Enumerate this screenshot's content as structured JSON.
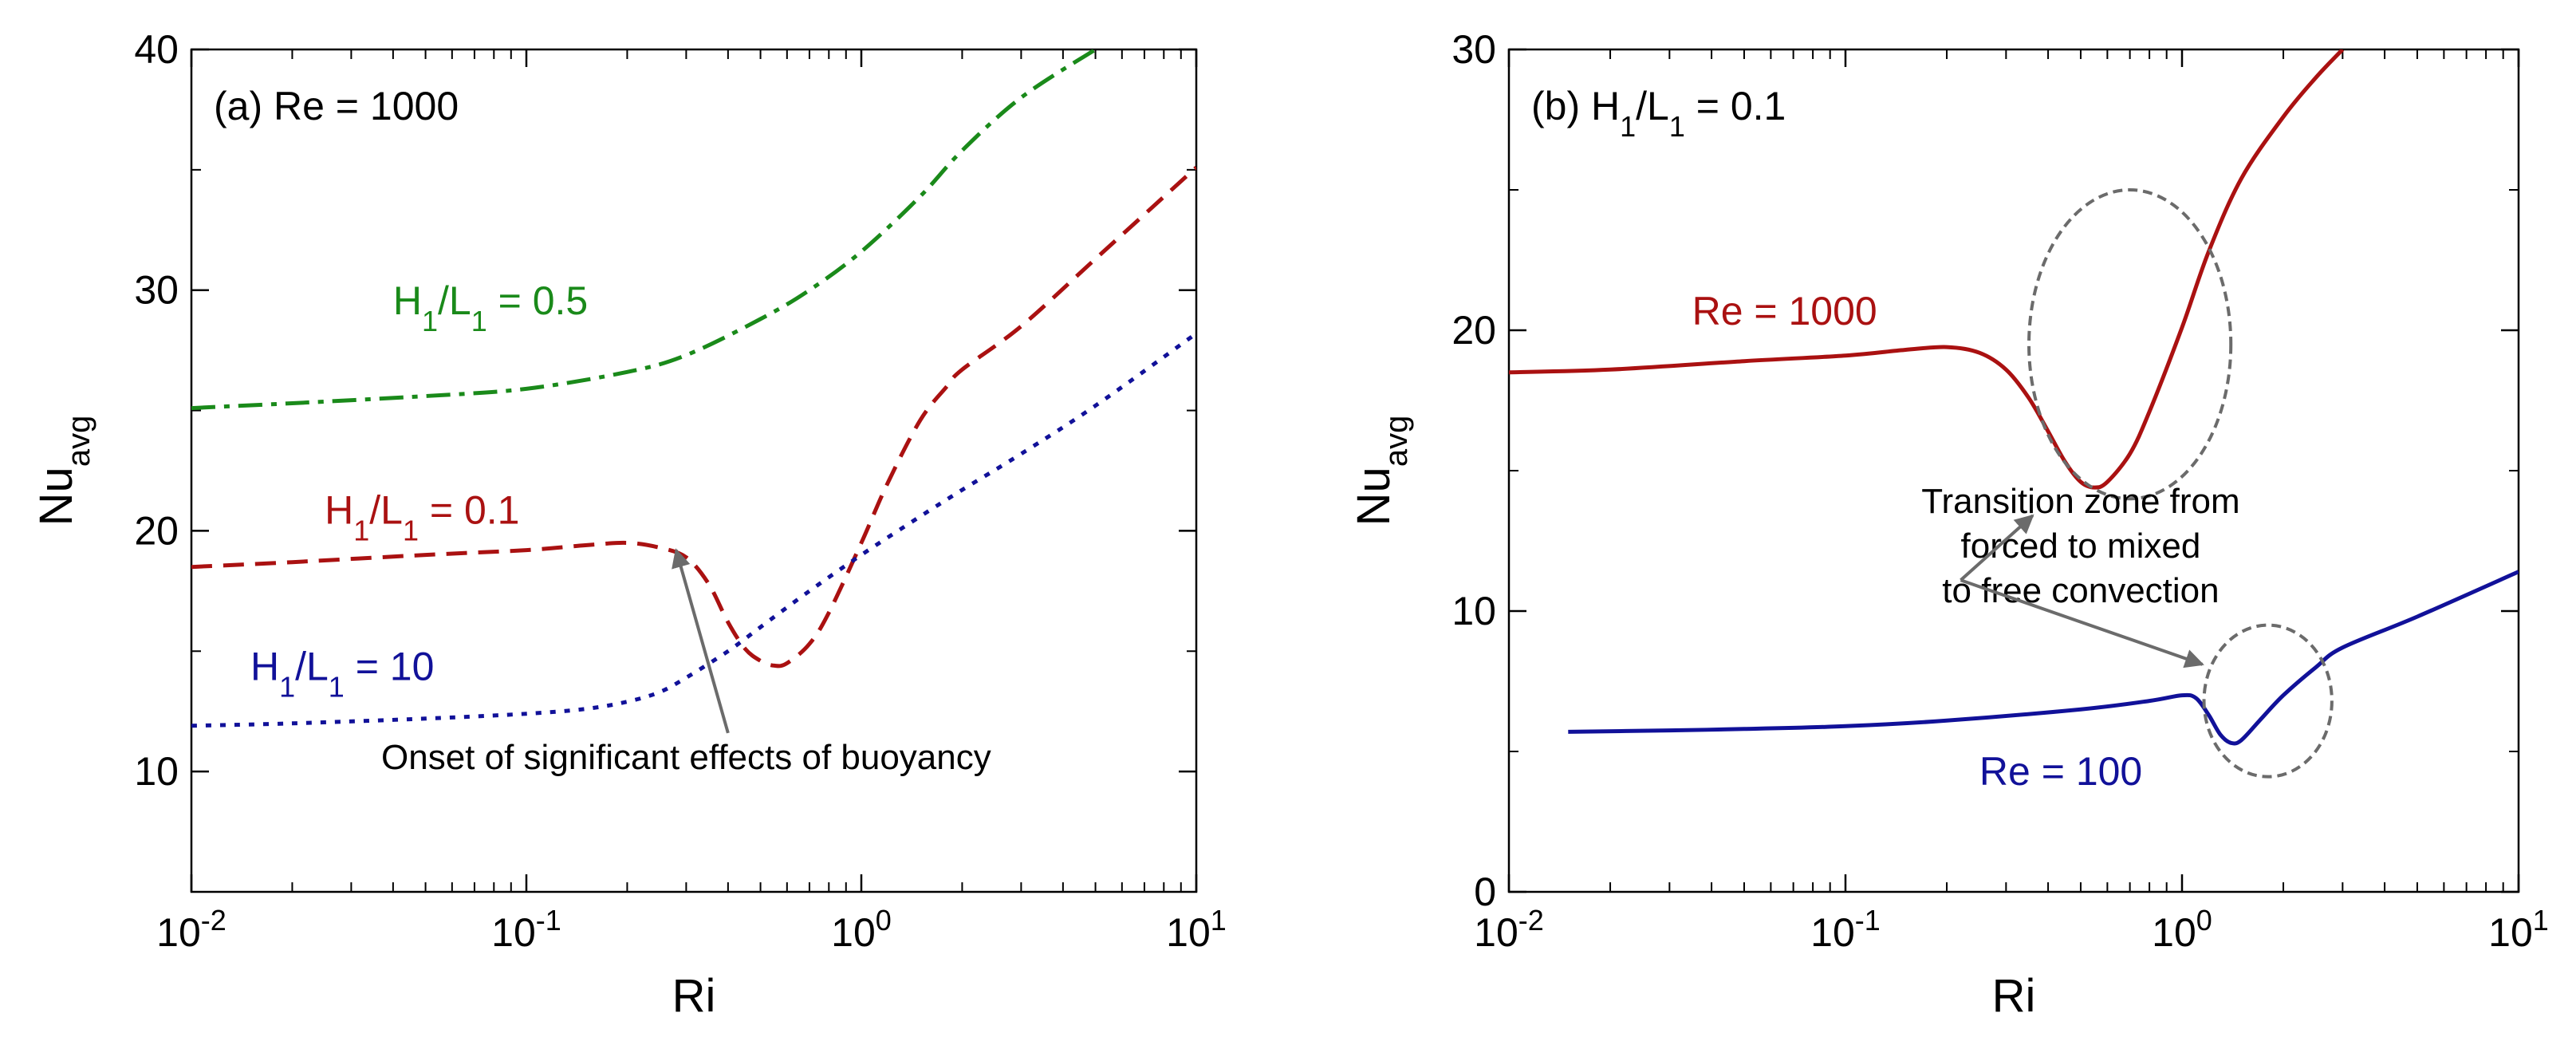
{
  "chart_data": [
    {
      "type": "line",
      "panel_label": "(a)",
      "title": "Re = 1000",
      "xlabel": "Ri",
      "ylabel": "Nu",
      "ylabel_sub": "avg",
      "xscale": "log",
      "xlim": [
        0.01,
        10
      ],
      "ylim": [
        5,
        40
      ],
      "xticks": [
        {
          "value": 0.01,
          "base": "10",
          "exp": "-2"
        },
        {
          "value": 0.1,
          "base": "10",
          "exp": "-1"
        },
        {
          "value": 1,
          "base": "10",
          "exp": "0"
        },
        {
          "value": 10,
          "base": "10",
          "exp": "1"
        }
      ],
      "yticks": [
        {
          "value": 10,
          "label": "10"
        },
        {
          "value": 20,
          "label": "20"
        },
        {
          "value": 30,
          "label": "30"
        },
        {
          "value": 40,
          "label": "40"
        }
      ],
      "series": [
        {
          "name": "H1/L1 = 0.5",
          "label_parts": [
            "H",
            "1",
            "/L",
            "1",
            " = 0.5"
          ],
          "color": "#1a8a1a",
          "style": "dashdot",
          "label_at": [
            0.04,
            29
          ],
          "x": [
            0.01,
            0.02,
            0.05,
            0.1,
            0.2,
            0.3,
            0.5,
            0.7,
            1.0,
            1.5,
            2.0,
            3.0,
            5.0
          ],
          "y": [
            25.1,
            25.3,
            25.6,
            25.9,
            26.6,
            27.3,
            28.8,
            30.0,
            31.6,
            33.9,
            35.8,
            38.0,
            40.0
          ]
        },
        {
          "name": "H1/L1 = 0.1",
          "label_parts": [
            "H",
            "1",
            "/L",
            "1",
            " = 0.1"
          ],
          "color": "#aa1111",
          "style": "dashed",
          "label_at": [
            0.025,
            20.3
          ],
          "x": [
            0.01,
            0.02,
            0.05,
            0.1,
            0.15,
            0.2,
            0.25,
            0.3,
            0.35,
            0.4,
            0.45,
            0.5,
            0.55,
            0.6,
            0.7,
            0.8,
            1.0,
            1.2,
            1.5,
            1.8,
            2.0,
            3.0,
            5.0,
            10.0
          ],
          "y": [
            18.5,
            18.7,
            19.0,
            19.2,
            19.4,
            19.5,
            19.3,
            18.9,
            17.8,
            16.2,
            15.1,
            14.6,
            14.4,
            14.5,
            15.3,
            16.6,
            19.5,
            22.0,
            24.6,
            26.0,
            26.7,
            28.5,
            31.3,
            35.1
          ]
        },
        {
          "name": "H1/L1 = 10",
          "label_parts": [
            "H",
            "1",
            "/L",
            "1",
            " = 10"
          ],
          "color": "#111199",
          "style": "dotted",
          "label_at": [
            0.015,
            13.8
          ],
          "x": [
            0.01,
            0.02,
            0.05,
            0.1,
            0.15,
            0.2,
            0.25,
            0.3,
            0.4,
            0.5,
            0.7,
            1.0,
            1.5,
            2.0,
            3.0,
            5.0,
            10.0
          ],
          "y": [
            11.9,
            12.0,
            12.2,
            12.4,
            12.6,
            12.9,
            13.3,
            13.9,
            15.0,
            16.0,
            17.5,
            19.0,
            20.6,
            21.7,
            23.2,
            25.2,
            28.2
          ]
        }
      ],
      "annotation": {
        "text": "Onset of significant effects of buoyancy",
        "text_at": [
          0.3,
          10.1
        ],
        "arrow_from": [
          0.4,
          11.6
        ],
        "arrow_to": [
          0.28,
          19.2
        ]
      }
    },
    {
      "type": "line",
      "panel_label": "(b)",
      "title": "H1/L1 = 0.1",
      "title_parts": [
        "H",
        "1",
        "/L",
        "1",
        " = 0.1"
      ],
      "xlabel": "Ri",
      "ylabel": "Nu",
      "ylabel_sub": "avg",
      "xscale": "log",
      "xlim": [
        0.01,
        10
      ],
      "ylim": [
        0,
        30
      ],
      "xticks": [
        {
          "value": 0.01,
          "base": "10",
          "exp": "-2"
        },
        {
          "value": 0.1,
          "base": "10",
          "exp": "-1"
        },
        {
          "value": 1,
          "base": "10",
          "exp": "0"
        },
        {
          "value": 10,
          "base": "10",
          "exp": "1"
        }
      ],
      "yticks": [
        {
          "value": 0,
          "label": "0"
        },
        {
          "value": 10,
          "label": "10"
        },
        {
          "value": 20,
          "label": "20"
        },
        {
          "value": 30,
          "label": "30"
        }
      ],
      "series": [
        {
          "name": "Re = 1000",
          "color": "#aa1111",
          "style": "solid",
          "label_at": [
            0.035,
            20.2
          ],
          "x": [
            0.01,
            0.02,
            0.05,
            0.1,
            0.15,
            0.2,
            0.25,
            0.3,
            0.35,
            0.4,
            0.45,
            0.5,
            0.55,
            0.6,
            0.7,
            0.8,
            1.0,
            1.2,
            1.5,
            2.0,
            2.5,
            3.0
          ],
          "y": [
            18.5,
            18.6,
            18.9,
            19.1,
            19.3,
            19.4,
            19.2,
            18.6,
            17.6,
            16.4,
            15.3,
            14.6,
            14.4,
            14.6,
            15.6,
            17.1,
            20.1,
            22.8,
            25.4,
            27.6,
            29.0,
            30.0
          ]
        },
        {
          "name": "Re = 100",
          "color": "#111199",
          "style": "solid",
          "label_at": [
            0.25,
            3.8
          ],
          "x": [
            0.015,
            0.03,
            0.05,
            0.1,
            0.2,
            0.5,
            0.8,
            1.0,
            1.1,
            1.2,
            1.3,
            1.4,
            1.5,
            1.7,
            2.0,
            2.5,
            3.0,
            5.0,
            10.0
          ],
          "y": [
            5.7,
            5.75,
            5.8,
            5.9,
            6.1,
            6.5,
            6.8,
            7.0,
            6.9,
            6.3,
            5.6,
            5.3,
            5.4,
            6.1,
            7.0,
            8.0,
            8.7,
            9.8,
            11.4
          ]
        }
      ],
      "circles": [
        {
          "cx": 0.7,
          "cy": 19.5,
          "rx_decades": 0.3,
          "ry": 5.5
        },
        {
          "cx": 1.8,
          "cy": 6.8,
          "rx_decades": 0.19,
          "ry": 2.7
        }
      ],
      "annotation": {
        "lines": [
          "Transition zone from",
          "forced to mixed",
          "to free convection"
        ],
        "text_at": [
          0.5,
          13.5
        ],
        "arrow_tail": [
          0.22,
          11.1
        ],
        "arrow_to_1": [
          0.36,
          13.4
        ],
        "arrow_to_2": [
          1.15,
          8.1
        ]
      }
    }
  ]
}
